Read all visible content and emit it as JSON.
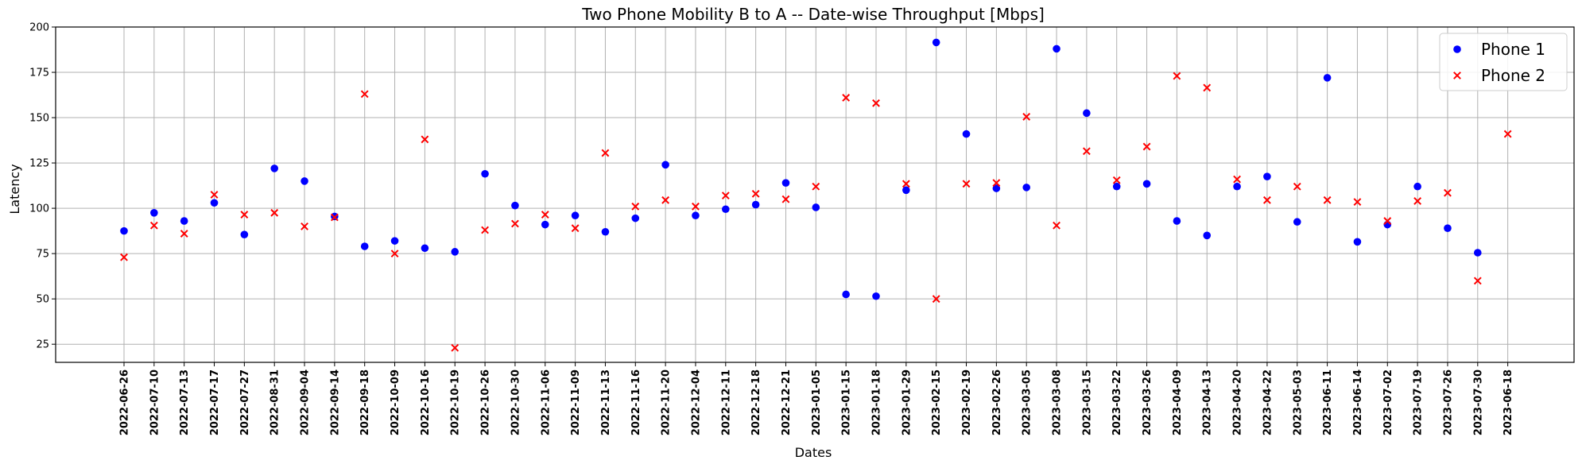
{
  "chart_data": {
    "type": "scatter",
    "title": "Two Phone Mobility B to A -- Date-wise Throughput [Mbps]",
    "xlabel": "Dates",
    "ylabel": "Latency",
    "ylim": [
      15,
      200
    ],
    "yticks": [
      25,
      50,
      75,
      100,
      125,
      150,
      175,
      200
    ],
    "grid": true,
    "legend_position": "top-right",
    "categories": [
      "2022-06-26",
      "2022-07-10",
      "2022-07-13",
      "2022-07-17",
      "2022-07-27",
      "2022-08-31",
      "2022-09-04",
      "2022-09-14",
      "2022-09-18",
      "2022-10-09",
      "2022-10-16",
      "2022-10-19",
      "2022-10-26",
      "2022-10-30",
      "2022-11-06",
      "2022-11-09",
      "2022-11-13",
      "2022-11-16",
      "2022-11-20",
      "2022-12-04",
      "2022-12-11",
      "2022-12-18",
      "2022-12-21",
      "2023-01-05",
      "2023-01-15",
      "2023-01-18",
      "2023-01-29",
      "2023-02-15",
      "2023-02-19",
      "2023-02-26",
      "2023-03-05",
      "2023-03-08",
      "2023-03-15",
      "2023-03-22",
      "2023-03-26",
      "2023-04-09",
      "2023-04-13",
      "2023-04-20",
      "2023-04-22",
      "2023-05-03",
      "2023-06-11",
      "2023-06-14",
      "2023-07-02",
      "2023-07-19",
      "2023-07-26",
      "2023-07-30",
      "2023-06-18"
    ],
    "series": [
      {
        "name": "Phone 1",
        "marker": "circle",
        "color": "#0000ff",
        "values": [
          87.5,
          97.5,
          93,
          103,
          85.5,
          122,
          115,
          95.5,
          79,
          82,
          78,
          76,
          119,
          101.5,
          91,
          96,
          87,
          94.5,
          124,
          96,
          99.5,
          102,
          114,
          100.5,
          52.5,
          51.5,
          110,
          191.5,
          141,
          111,
          111.5,
          188,
          152.5,
          112,
          113.5,
          93,
          85,
          112,
          117.5,
          92.5,
          172,
          81.5,
          91,
          112,
          89,
          75.5,
          null
        ]
      },
      {
        "name": "Phone 2",
        "marker": "x",
        "color": "#ff0000",
        "values": [
          73,
          90.5,
          86,
          107.5,
          96.5,
          97.5,
          90,
          95,
          163,
          75,
          138,
          23,
          88,
          91.5,
          96.5,
          89,
          130.5,
          101,
          104.5,
          101,
          107,
          108,
          105,
          112,
          161,
          158,
          113.5,
          50,
          113.5,
          114,
          150.5,
          90.5,
          131.5,
          115.5,
          134,
          173,
          166.5,
          116,
          104.5,
          112,
          104.5,
          103.5,
          93,
          104,
          108.5,
          60,
          141
        ]
      }
    ]
  }
}
